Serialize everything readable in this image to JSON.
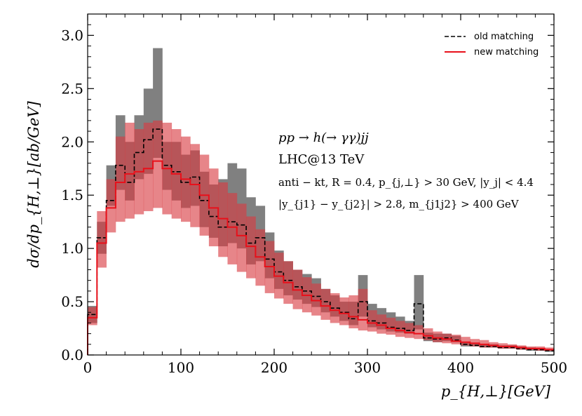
{
  "chart_data": {
    "type": "area",
    "title": "",
    "xlabel": "p_{H,⊥}[GeV]",
    "ylabel": "dσ/dp_{H,⊥}[ab/GeV]",
    "xlim": [
      0,
      500
    ],
    "ylim": [
      0,
      3.2
    ],
    "xticks": [
      0,
      100,
      200,
      300,
      400,
      500
    ],
    "xtick_labels": [
      "0",
      "100",
      "200",
      "300",
      "400",
      "500"
    ],
    "yticks": [
      0,
      0.5,
      1.0,
      1.5,
      2.0,
      2.5,
      3.0
    ],
    "ytick_labels": [
      "0.0",
      "0.5",
      "1.0",
      "1.5",
      "2.0",
      "2.5",
      "3.0"
    ],
    "bin_width": 10,
    "bin_edges_start": 0,
    "legend_position": "top-right",
    "series": [
      {
        "name": "old matching",
        "style": "black-dashed-step",
        "color": "#000000",
        "band_color": "#808080",
        "values": [
          0.38,
          1.1,
          1.45,
          1.78,
          1.62,
          1.9,
          2.02,
          2.12,
          1.78,
          1.72,
          1.62,
          1.67,
          1.45,
          1.3,
          1.2,
          1.25,
          1.22,
          1.05,
          1.1,
          0.9,
          0.78,
          0.7,
          0.64,
          0.6,
          0.55,
          0.5,
          0.44,
          0.4,
          0.34,
          0.5,
          0.32,
          0.3,
          0.26,
          0.25,
          0.23,
          0.48,
          0.16,
          0.15,
          0.16,
          0.14,
          0.1,
          0.09,
          0.08,
          0.08,
          0.07,
          0.07,
          0.06,
          0.05,
          0.05,
          0.04
        ],
        "band_low": [
          0.3,
          0.95,
          1.4,
          1.55,
          1.45,
          1.65,
          1.7,
          1.85,
          1.55,
          1.45,
          1.38,
          1.4,
          1.2,
          1.1,
          1.02,
          1.05,
          1.0,
          0.85,
          0.88,
          0.72,
          0.62,
          0.56,
          0.52,
          0.48,
          0.45,
          0.4,
          0.36,
          0.32,
          0.28,
          0.36,
          0.26,
          0.24,
          0.22,
          0.21,
          0.2,
          0.24,
          0.13,
          0.12,
          0.13,
          0.12,
          0.08,
          0.08,
          0.07,
          0.07,
          0.06,
          0.06,
          0.05,
          0.04,
          0.04,
          0.03
        ],
        "band_high": [
          0.46,
          1.25,
          1.78,
          2.25,
          2.0,
          2.25,
          2.5,
          2.88,
          2.0,
          2.0,
          1.88,
          1.92,
          1.72,
          1.6,
          1.65,
          1.8,
          1.75,
          1.48,
          1.4,
          1.15,
          0.98,
          0.88,
          0.8,
          0.76,
          0.72,
          0.62,
          0.56,
          0.5,
          0.5,
          0.75,
          0.48,
          0.44,
          0.4,
          0.36,
          0.32,
          0.75,
          0.21,
          0.2,
          0.2,
          0.18,
          0.12,
          0.11,
          0.1,
          0.1,
          0.09,
          0.09,
          0.08,
          0.07,
          0.06,
          0.05
        ]
      },
      {
        "name": "new matching",
        "style": "red-solid-step",
        "color": "#e8101a",
        "band_color": "#d83a40",
        "values": [
          0.35,
          1.05,
          1.38,
          1.62,
          1.7,
          1.72,
          1.75,
          1.82,
          1.75,
          1.7,
          1.65,
          1.6,
          1.5,
          1.38,
          1.28,
          1.2,
          1.12,
          1.02,
          0.92,
          0.83,
          0.74,
          0.68,
          0.61,
          0.56,
          0.51,
          0.46,
          0.42,
          0.39,
          0.36,
          0.33,
          0.3,
          0.28,
          0.25,
          0.23,
          0.21,
          0.2,
          0.18,
          0.16,
          0.15,
          0.13,
          0.12,
          0.11,
          0.1,
          0.09,
          0.08,
          0.08,
          0.07,
          0.06,
          0.06,
          0.05
        ],
        "band_low": [
          0.28,
          0.82,
          1.15,
          1.25,
          1.28,
          1.32,
          1.35,
          1.38,
          1.32,
          1.28,
          1.25,
          1.2,
          1.12,
          1.02,
          0.92,
          0.85,
          0.78,
          0.72,
          0.65,
          0.58,
          0.53,
          0.48,
          0.43,
          0.4,
          0.37,
          0.33,
          0.3,
          0.28,
          0.25,
          0.23,
          0.22,
          0.2,
          0.19,
          0.17,
          0.16,
          0.15,
          0.14,
          0.12,
          0.11,
          0.1,
          0.09,
          0.08,
          0.07,
          0.07,
          0.06,
          0.06,
          0.05,
          0.05,
          0.04,
          0.04
        ],
        "band_high": [
          0.45,
          1.35,
          1.65,
          2.05,
          2.18,
          2.12,
          2.18,
          2.2,
          2.18,
          2.12,
          2.05,
          1.98,
          1.88,
          1.75,
          1.62,
          1.52,
          1.42,
          1.3,
          1.18,
          1.07,
          0.96,
          0.88,
          0.8,
          0.73,
          0.67,
          0.62,
          0.58,
          0.54,
          0.56,
          0.62,
          0.42,
          0.38,
          0.35,
          0.32,
          0.3,
          0.28,
          0.25,
          0.22,
          0.2,
          0.19,
          0.17,
          0.15,
          0.14,
          0.12,
          0.11,
          0.1,
          0.09,
          0.08,
          0.08,
          0.07
        ]
      }
    ],
    "annotations": {
      "process": "pp → h(→ γγ)jj",
      "collider": "LHC@13 TeV",
      "cuts1": "anti − kt, R = 0.4, p_{j,⊥} > 30 GeV, |y_j| < 4.4",
      "cuts2": "|y_{j1} − y_{j2}| > 2.8, m_{j1j2} > 400 GeV"
    }
  }
}
